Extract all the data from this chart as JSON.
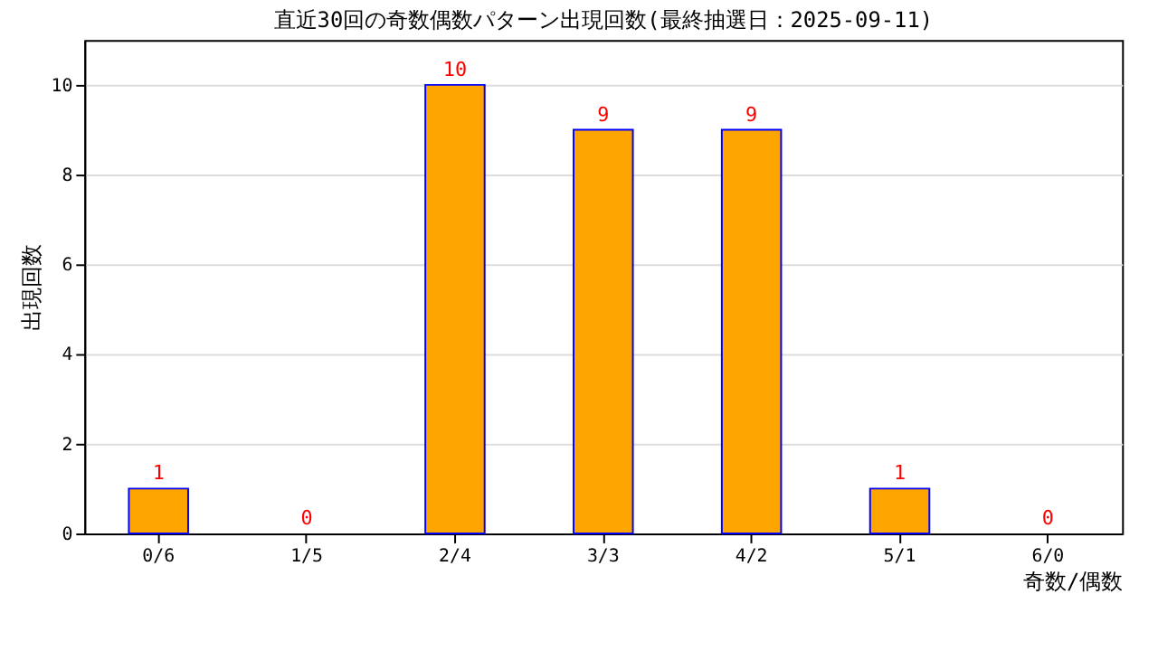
{
  "chart_data": {
    "type": "bar",
    "title": "直近30回の奇数偶数パターン出現回数(最終抽選日：2025-09-11)",
    "xlabel": "奇数/偶数",
    "ylabel": "出現回数",
    "categories": [
      "0/6",
      "1/5",
      "2/4",
      "3/3",
      "4/2",
      "5/1",
      "6/0"
    ],
    "series": [
      {
        "color": "#ffa500",
        "values": [
          1,
          0,
          10,
          9,
          9,
          1,
          0
        ]
      }
    ],
    "ylim": [
      0,
      11
    ],
    "yticks": [
      0,
      2,
      4,
      6,
      8,
      10
    ],
    "grid": "y",
    "data_labels": true
  }
}
